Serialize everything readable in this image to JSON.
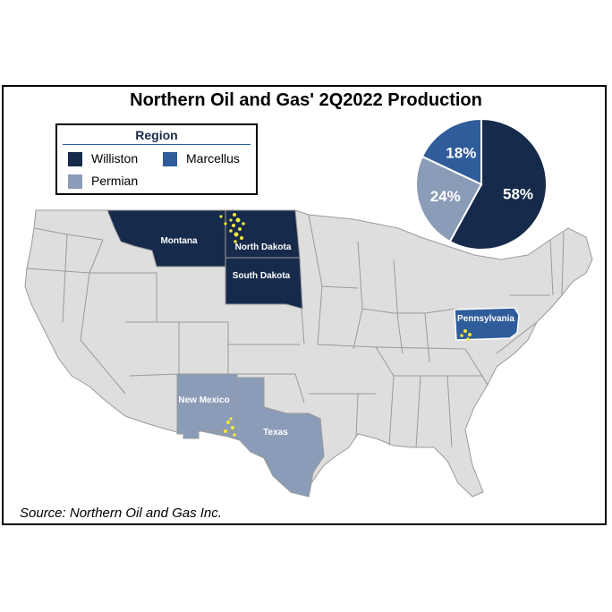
{
  "title": "Northern Oil and Gas' 2Q2022 Production",
  "source": "Source: Northern Oil and Gas Inc.",
  "colors": {
    "williston": "#162a4c",
    "marcellus": "#2f5c9a",
    "permian": "#8b9cb8",
    "other_state": "#dedede",
    "state_border": "#9a9a9a",
    "well_dots": "#f2e93a"
  },
  "legend": {
    "title": "Region",
    "items": [
      {
        "label": "Williston",
        "color": "#162a4c"
      },
      {
        "label": "Marcellus",
        "color": "#2f5c9a"
      },
      {
        "label": "Permian",
        "color": "#8b9cb8"
      }
    ]
  },
  "states": {
    "montana": "Montana",
    "north_dakota": "North Dakota",
    "south_dakota": "South Dakota",
    "new_mexico": "New Mexico",
    "texas": "Texas",
    "pennsylvania": "Pennsylvania"
  },
  "chart_data": {
    "type": "pie",
    "slices": [
      {
        "label": "58%",
        "value": 58,
        "region": "Williston",
        "color": "#162a4c"
      },
      {
        "label": "24%",
        "value": 24,
        "region": "Permian",
        "color": "#8b9cb8"
      },
      {
        "label": "18%",
        "value": 18,
        "region": "Marcellus",
        "color": "#2f5c9a"
      }
    ]
  }
}
